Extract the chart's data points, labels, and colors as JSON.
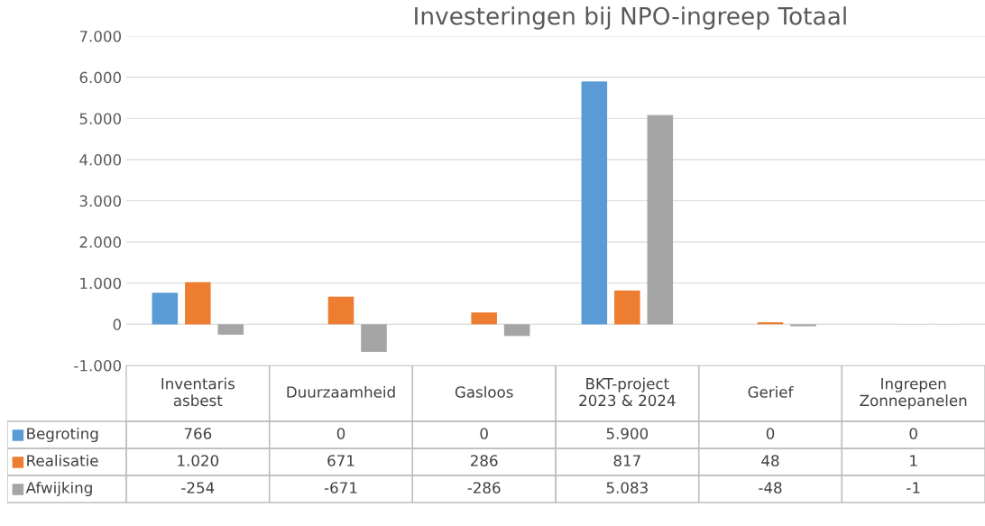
{
  "chart_data": {
    "type": "bar",
    "title": "Investeringen bij NPO-ingreep Totaal",
    "categories": [
      "Inventaris asbest",
      "Duurzaamheid",
      "Gasloos",
      "BKT-project 2023 & 2024",
      "Gerief",
      "Ingrepen Zonnepanelen"
    ],
    "series": [
      {
        "name": "Begroting",
        "color": "#5b9bd5",
        "values": [
          766,
          0,
          0,
          5900,
          0,
          0
        ],
        "value_labels": [
          "766",
          "0",
          "0",
          "5.900",
          "0",
          "0"
        ]
      },
      {
        "name": "Realisatie",
        "color": "#ed7d31",
        "values": [
          1020,
          671,
          286,
          817,
          48,
          1
        ],
        "value_labels": [
          "1.020",
          "671",
          "286",
          "817",
          "48",
          "1"
        ]
      },
      {
        "name": "Afwijking",
        "color": "#a5a5a5",
        "values": [
          -254,
          -671,
          -286,
          5083,
          -48,
          -1
        ],
        "value_labels": [
          "-254",
          "-671",
          "-286",
          "5.083",
          "-48",
          "-1"
        ]
      }
    ],
    "ylim": [
      -1000,
      7000
    ],
    "yticks": [
      {
        "value": -1000,
        "label": "-1.000"
      },
      0,
      {
        "value": 1000,
        "label": "1.000"
      },
      {
        "value": 2000,
        "label": "2.000"
      },
      {
        "value": 3000,
        "label": "3.000"
      },
      {
        "value": 4000,
        "label": "4.000"
      },
      {
        "value": 5000,
        "label": "5.000"
      },
      {
        "value": 6000,
        "label": "6.000"
      },
      {
        "value": 7000,
        "label": "7.000"
      }
    ],
    "grid": "y",
    "legend": "bottom"
  }
}
